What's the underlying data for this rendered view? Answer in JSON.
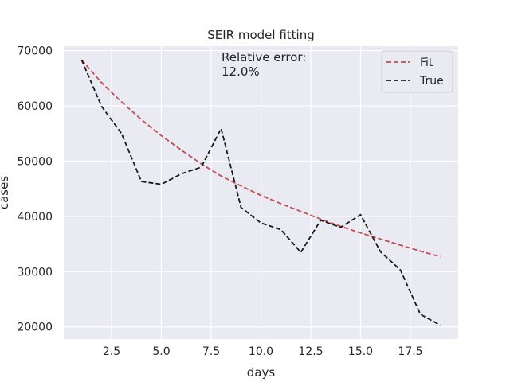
{
  "chart_data": {
    "type": "line",
    "title": "SEIR model fitting",
    "xlabel": "days",
    "ylabel": "cases",
    "xlim": [
      0.1,
      19.9
    ],
    "ylim": [
      17800,
      70800
    ],
    "xticks": [
      2.5,
      5.0,
      7.5,
      10.0,
      12.5,
      15.0,
      17.5
    ],
    "xtick_labels": [
      "2.5",
      "5.0",
      "7.5",
      "10.0",
      "12.5",
      "15.0",
      "17.5"
    ],
    "yticks": [
      20000,
      30000,
      40000,
      50000,
      60000,
      70000
    ],
    "ytick_labels": [
      "20000",
      "30000",
      "40000",
      "50000",
      "60000",
      "70000"
    ],
    "grid": true,
    "legend_position": "top-right",
    "annotation": [
      "Relative error:",
      "12.0%"
    ],
    "series": [
      {
        "name": "Fit",
        "color": "#c44e52",
        "dash": "dashed",
        "x": [
          1,
          2,
          3,
          4,
          5,
          6,
          7,
          8,
          9,
          10,
          11,
          12,
          13,
          14,
          15,
          16,
          17,
          18,
          19
        ],
        "values": [
          68300,
          64200,
          60700,
          57500,
          54600,
          52000,
          49500,
          47300,
          45500,
          43800,
          42300,
          40900,
          39500,
          38200,
          37000,
          35900,
          34800,
          33700,
          32700
        ]
      },
      {
        "name": "True",
        "color": "#1a1a1a",
        "dash": "dashed",
        "x": [
          1,
          2,
          3,
          4,
          5,
          6,
          7,
          8,
          9,
          10,
          11,
          12,
          13,
          14,
          15,
          16,
          17,
          18,
          19
        ],
        "values": [
          68300,
          59900,
          55000,
          46300,
          45800,
          47700,
          48900,
          55900,
          41600,
          38800,
          37600,
          33500,
          39300,
          38000,
          40300,
          33600,
          30300,
          22300,
          20300
        ]
      }
    ]
  }
}
